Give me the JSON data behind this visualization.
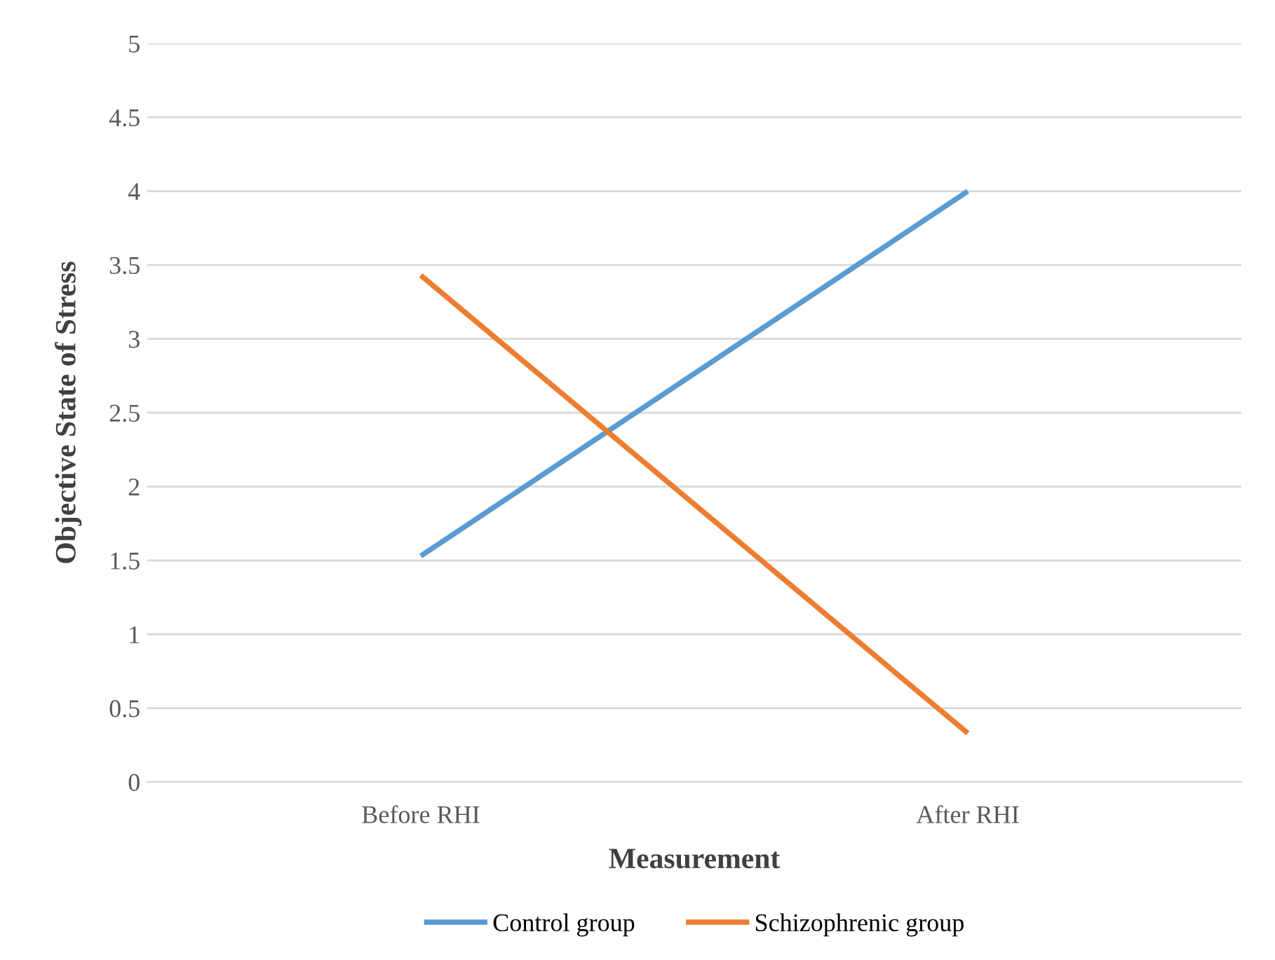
{
  "chart_data": {
    "type": "line",
    "xlabel": "Measurement",
    "ylabel": "Objective State of Stress",
    "categories": [
      "Before RHI",
      "After RHI"
    ],
    "series": [
      {
        "name": "Control group",
        "color": "#5b9bd5",
        "values": [
          1.53,
          4.0
        ]
      },
      {
        "name": "Schizophrenic group",
        "color": "#ed7d31",
        "values": [
          3.43,
          0.33
        ]
      }
    ],
    "ylim": [
      0,
      5
    ],
    "yticks": [
      0,
      0.5,
      1,
      1.5,
      2,
      2.5,
      3,
      3.5,
      4,
      4.5,
      5
    ],
    "grid": "y",
    "legend": "bottom",
    "marker": "none",
    "line_style": "solid"
  }
}
